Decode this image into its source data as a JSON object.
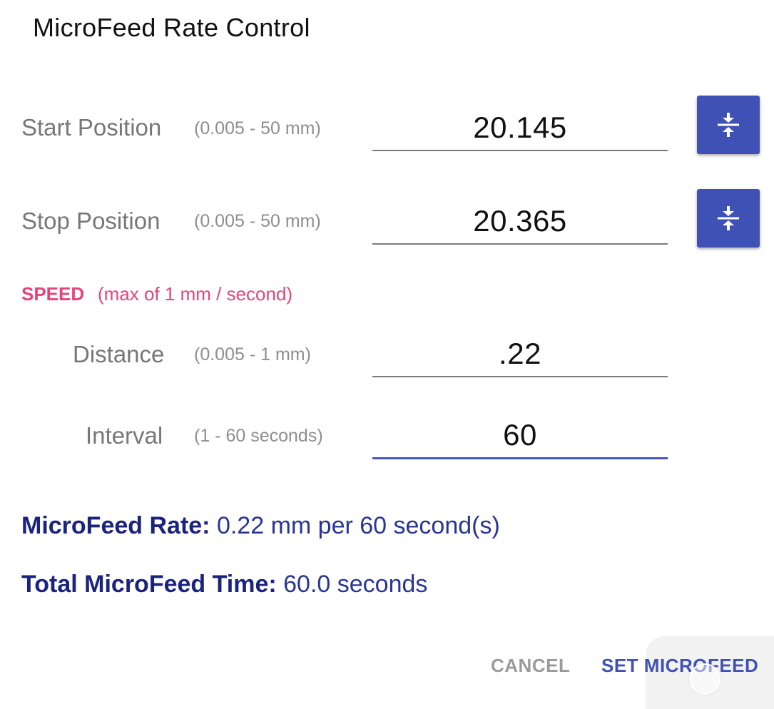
{
  "dialog": {
    "title": "MicroFeed Rate Control"
  },
  "start_position": {
    "label": "Start Position",
    "range": "(0.005 - 50 mm)",
    "value": "20.145",
    "action_icon": "compress-vertical-icon"
  },
  "stop_position": {
    "label": "Stop Position",
    "range": "(0.005 - 50 mm)",
    "value": "20.365",
    "action_icon": "compress-vertical-icon"
  },
  "speed": {
    "label": "SPEED",
    "note": "(max of 1 mm / second)"
  },
  "distance": {
    "label": "Distance",
    "range": "(0.005 - 1 mm)",
    "value": ".22"
  },
  "interval": {
    "label": "Interval",
    "range": "(1 - 60 seconds)",
    "value": "60"
  },
  "summary": {
    "rate_label": "MicroFeed Rate:",
    "rate_value": "0.22 mm per 60 second(s)",
    "time_label": "Total MicroFeed Time:",
    "time_value": "60.0 seconds"
  },
  "actions": {
    "cancel": "CANCEL",
    "confirm": "SET MICROFEED"
  },
  "colors": {
    "accent": "#3f51b5",
    "speed": "#e8437a",
    "summary": "#1a237e"
  }
}
